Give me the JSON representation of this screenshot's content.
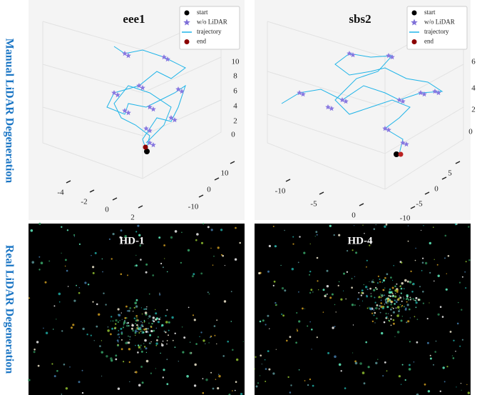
{
  "row_labels": [
    "Manual LiDAR Degeneration",
    "Real LiDAR Degeneration"
  ],
  "panels": [
    {
      "title": "eee1",
      "legend": [
        "start",
        "w/o LiDAR",
        "trajectory",
        "end"
      ],
      "z_ticks": [
        10,
        8,
        6,
        4,
        2,
        0
      ],
      "x_ticks": [
        -4,
        -2,
        0,
        2
      ],
      "y_ticks": [
        10,
        0,
        -10
      ]
    },
    {
      "title": "sbs2",
      "legend": [
        "start",
        "w/o LiDAR",
        "trajectory",
        "end"
      ],
      "z_ticks": [
        6,
        4,
        2,
        0
      ],
      "x_ticks": [
        -10,
        -5,
        0
      ],
      "y_ticks": [
        5,
        0,
        -5,
        -10
      ]
    },
    {
      "title": "HD-1"
    },
    {
      "title": "HD-4"
    }
  ]
}
